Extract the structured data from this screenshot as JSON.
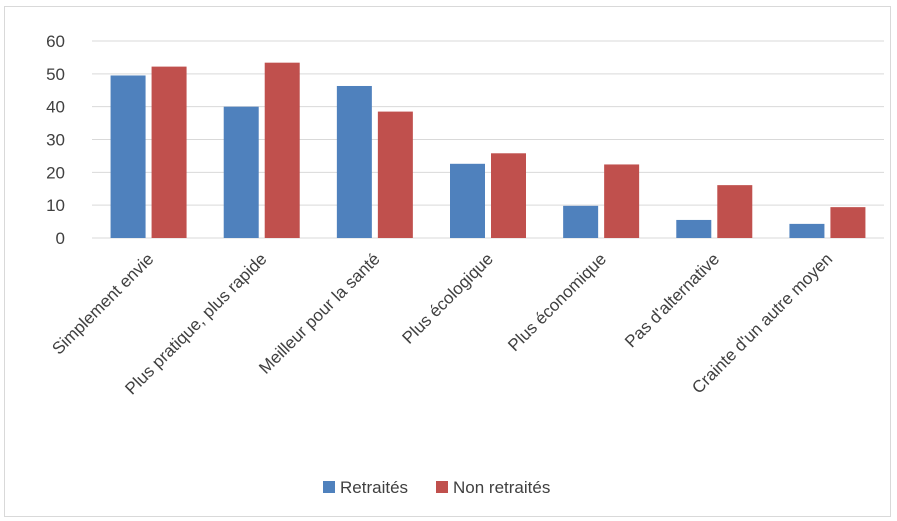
{
  "chart_data": {
    "type": "bar",
    "categories": [
      "Simplement envie",
      "Plus pratique, plus rapide",
      "Meilleur pour la santé",
      "Plus écologique",
      "Plus économique",
      "Pas d'alternative",
      "Crainte d'un autre moyen"
    ],
    "series": [
      {
        "name": "Retraités",
        "values": [
          49.5,
          40,
          46.3,
          22.6,
          9.8,
          5.5,
          4.3
        ],
        "color": "#4f81bd"
      },
      {
        "name": "Non retraités",
        "values": [
          52.2,
          53.4,
          38.5,
          25.8,
          22.4,
          16.1,
          9.4
        ],
        "color": "#c0504d"
      }
    ],
    "yticks": [
      0,
      10,
      20,
      30,
      40,
      50,
      60
    ],
    "ylim": [
      0,
      60
    ],
    "grid": true,
    "legend_position": "bottom",
    "title": "",
    "xlabel": "",
    "ylabel": ""
  }
}
